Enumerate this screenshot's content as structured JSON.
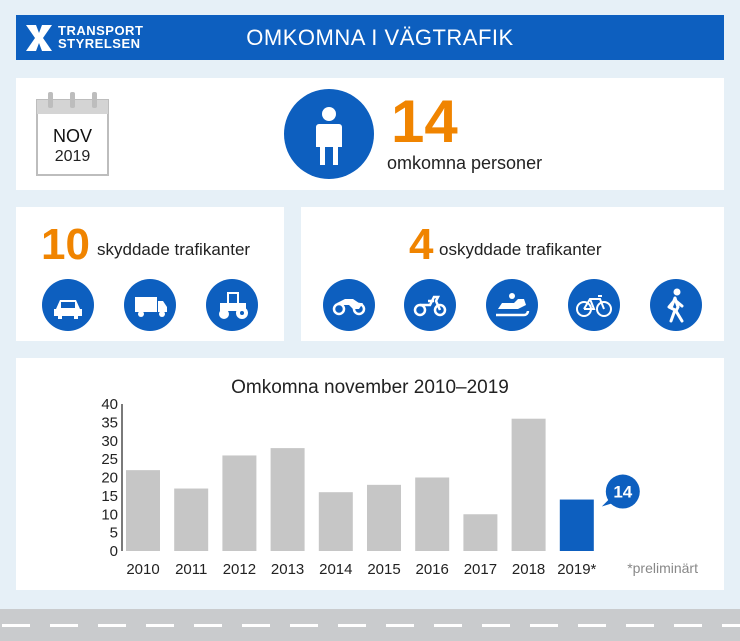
{
  "header": {
    "logo_line1": "TRANSPORT",
    "logo_line2": "STYRELSEN",
    "title": "OMKOMNA I VÄGTRAFIK"
  },
  "calendar": {
    "month": "NOV",
    "year": "2019"
  },
  "total": {
    "value": "14",
    "label": "omkomna personer"
  },
  "protected": {
    "value": "10",
    "label": "skyddade trafikanter",
    "icons": [
      "car-icon",
      "truck-icon",
      "tractor-icon"
    ]
  },
  "unprotected": {
    "value": "4",
    "label": "oskyddade trafikanter",
    "icons": [
      "motorcycle-icon",
      "moped-icon",
      "snowmobile-icon",
      "bicycle-icon",
      "pedestrian-icon"
    ]
  },
  "colors": {
    "brand_blue": "#0d5fbf",
    "accent_orange": "#f08400",
    "bar_gray": "#c6c6c6"
  },
  "chart_data": {
    "type": "bar",
    "title": "Omkomna november 2010–2019",
    "categories": [
      "2010",
      "2011",
      "2012",
      "2013",
      "2014",
      "2015",
      "2016",
      "2017",
      "2018",
      "2019*"
    ],
    "values": [
      22,
      17,
      26,
      28,
      16,
      18,
      20,
      10,
      36,
      14
    ],
    "highlight_index": 9,
    "highlight_label": "14",
    "ylim": [
      0,
      40
    ],
    "yticks": [
      "0",
      "5",
      "10",
      "15",
      "20",
      "25",
      "30",
      "35",
      "40"
    ],
    "grid": false,
    "footnote": "*preliminärt"
  }
}
